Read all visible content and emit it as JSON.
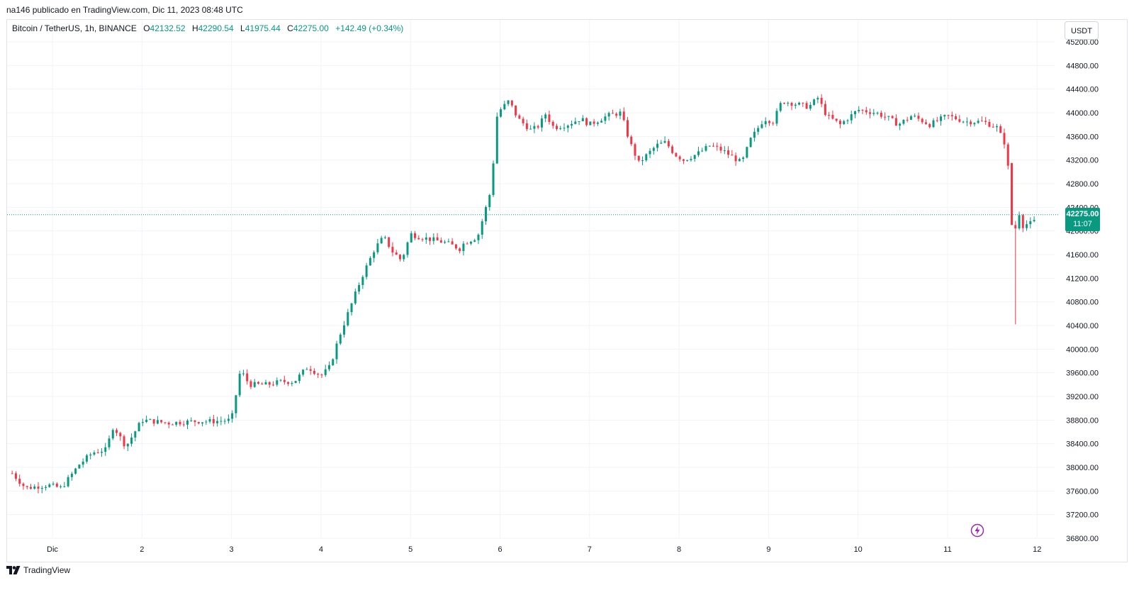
{
  "publisher": "na146 publicado en TradingView.com, Dic 11, 2023 08:48 UTC",
  "legend": {
    "symbol": "Bitcoin / TetherUS, 1h, BINANCE",
    "o_label": "O",
    "o_value": "42132.52",
    "h_label": "H",
    "h_value": "42290.54",
    "l_label": "L",
    "l_value": "41975.44",
    "c_label": "C",
    "c_value": "42275.00",
    "change": "+142.49 (+0.34%)"
  },
  "currency": "USDT",
  "price_label": {
    "price": "42275.00",
    "countdown": "11:07"
  },
  "footer_logo": "TradingView",
  "colors": {
    "up": "#089981",
    "down": "#f23645",
    "grid": "#f0f3fa",
    "bolt": "#9c27b0"
  },
  "icons": {
    "bolt": "lightning-icon",
    "logo": "tradingview-logo-icon"
  },
  "chart_data": {
    "type": "candlestick",
    "interval": "1h",
    "x_ticks": [
      "Dic",
      "2",
      "3",
      "4",
      "5",
      "6",
      "7",
      "8",
      "9",
      "10",
      "11",
      "12"
    ],
    "y_ticks": [
      "45200.00",
      "44800.00",
      "44400.00",
      "44000.00",
      "43600.00",
      "43200.00",
      "42800.00",
      "42400.00",
      "42000.00",
      "41600.00",
      "41200.00",
      "40800.00",
      "40400.00",
      "40000.00",
      "39600.00",
      "39200.00",
      "38800.00",
      "38400.00",
      "38000.00",
      "37600.00",
      "37200.00",
      "36800.00"
    ],
    "ylim": [
      36800,
      45200
    ],
    "x_range_days": [
      -0.45,
      11.05
    ],
    "current_price": 42275.0,
    "grid": true,
    "anchors": [
      [
        -0.45,
        37900
      ],
      [
        -0.3,
        37650
      ],
      [
        -0.05,
        37700
      ],
      [
        0.1,
        37650
      ],
      [
        0.3,
        38050
      ],
      [
        0.45,
        38250
      ],
      [
        0.6,
        38300
      ],
      [
        0.68,
        38700
      ],
      [
        0.82,
        38350
      ],
      [
        1.0,
        38800
      ],
      [
        1.3,
        38750
      ],
      [
        1.6,
        38780
      ],
      [
        1.8,
        38780
      ],
      [
        2.0,
        38800
      ],
      [
        2.1,
        39650
      ],
      [
        2.2,
        39400
      ],
      [
        2.4,
        39400
      ],
      [
        2.55,
        39450
      ],
      [
        2.7,
        39450
      ],
      [
        2.85,
        39700
      ],
      [
        3.0,
        39550
      ],
      [
        3.1,
        39700
      ],
      [
        3.2,
        40200
      ],
      [
        3.3,
        40600
      ],
      [
        3.45,
        41200
      ],
      [
        3.6,
        41700
      ],
      [
        3.7,
        41900
      ],
      [
        3.8,
        41650
      ],
      [
        3.9,
        41500
      ],
      [
        4.0,
        41950
      ],
      [
        4.1,
        41900
      ],
      [
        4.25,
        41850
      ],
      [
        4.4,
        41800
      ],
      [
        4.55,
        41700
      ],
      [
        4.6,
        41800
      ],
      [
        4.75,
        41900
      ],
      [
        4.9,
        42700
      ],
      [
        4.97,
        44000
      ],
      [
        5.1,
        44200
      ],
      [
        5.2,
        43900
      ],
      [
        5.35,
        43700
      ],
      [
        5.45,
        43800
      ],
      [
        5.5,
        44000
      ],
      [
        5.6,
        43750
      ],
      [
        5.75,
        43800
      ],
      [
        5.9,
        43900
      ],
      [
        6.0,
        43800
      ],
      [
        6.2,
        43950
      ],
      [
        6.35,
        44000
      ],
      [
        6.45,
        43500
      ],
      [
        6.55,
        43150
      ],
      [
        6.65,
        43300
      ],
      [
        6.75,
        43450
      ],
      [
        6.85,
        43500
      ],
      [
        6.95,
        43300
      ],
      [
        7.05,
        43200
      ],
      [
        7.2,
        43300
      ],
      [
        7.35,
        43450
      ],
      [
        7.5,
        43350
      ],
      [
        7.6,
        43250
      ],
      [
        7.7,
        43150
      ],
      [
        7.8,
        43550
      ],
      [
        7.95,
        43900
      ],
      [
        8.05,
        43850
      ],
      [
        8.15,
        44200
      ],
      [
        8.3,
        44150
      ],
      [
        8.45,
        44100
      ],
      [
        8.55,
        44250
      ],
      [
        8.65,
        43950
      ],
      [
        8.8,
        43800
      ],
      [
        9.0,
        44050
      ],
      [
        9.2,
        44000
      ],
      [
        9.35,
        43900
      ],
      [
        9.45,
        43800
      ],
      [
        9.6,
        43950
      ],
      [
        9.8,
        43800
      ],
      [
        10.0,
        43950
      ],
      [
        10.2,
        43850
      ],
      [
        10.4,
        43850
      ],
      [
        10.55,
        43750
      ],
      [
        10.65,
        43450
      ],
      [
        10.7,
        42700
      ],
      [
        10.75,
        42000
      ],
      [
        10.8,
        42300
      ],
      [
        10.85,
        42050
      ],
      [
        10.9,
        42150
      ],
      [
        10.95,
        42100
      ],
      [
        11.0,
        42275
      ]
    ]
  }
}
